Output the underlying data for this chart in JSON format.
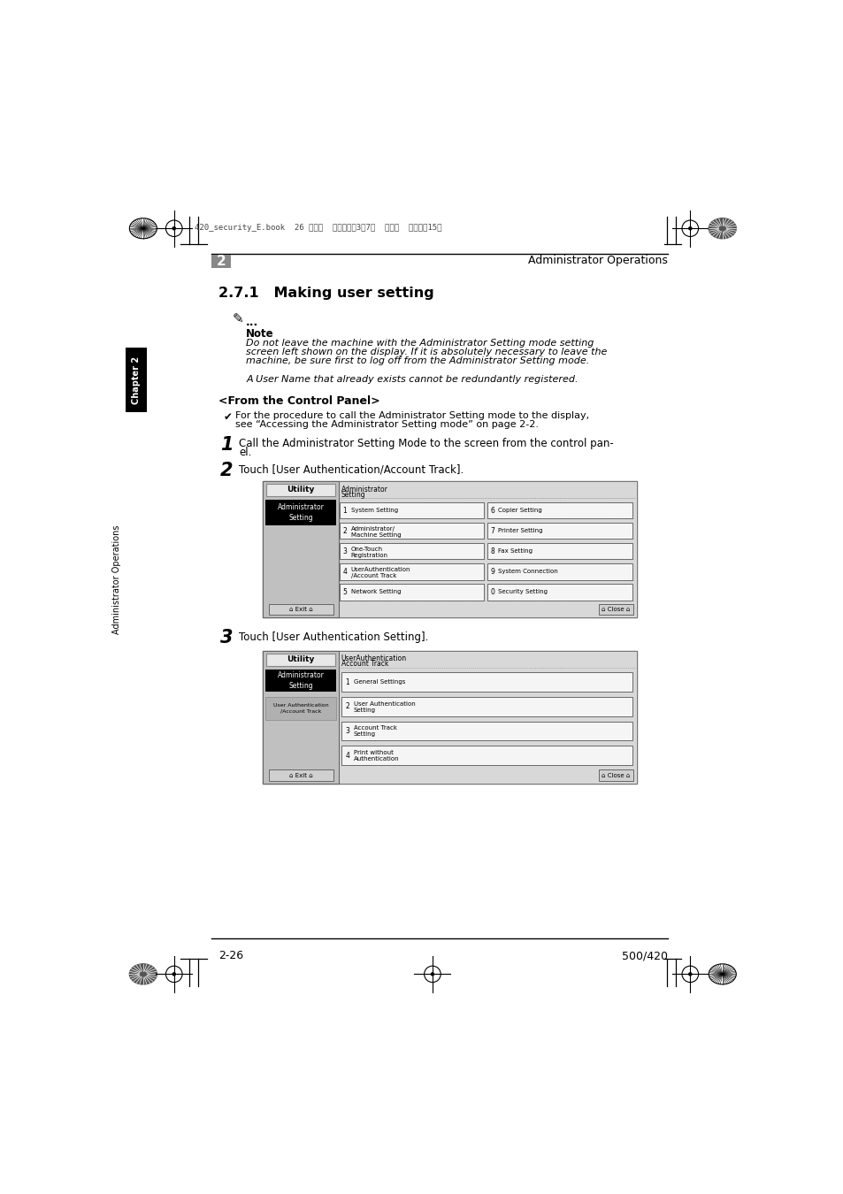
{
  "page_bg": "#ffffff",
  "chapter_tab_text": "Chapter 2",
  "side_tab_text": "Administrator Operations",
  "header_right_text": "Administrator Operations",
  "header_number": "2",
  "section_title": "2.7.1   Making user setting",
  "note_label": "Note",
  "note_line1": "Do not leave the machine with the Administrator Setting mode setting",
  "note_line2": "screen left shown on the display. If it is absolutely necessary to leave the",
  "note_line3": "machine, be sure first to log off from the Administrator Setting mode.",
  "note_line4": "A User Name that already exists cannot be redundantly registered.",
  "from_control_panel": "<From the Control Panel>",
  "check_line1": "For the procedure to call the Administrator Setting mode to the display,",
  "check_line2": "see “Accessing the Administrator Setting mode” on page 2-2.",
  "step1_text1": "Call the Administrator Setting Mode to the screen from the control pan-",
  "step1_text2": "el.",
  "step2_text": "Touch [User Authentication/Account Track].",
  "step3_text": "Touch [User Authentication Setting].",
  "footer_left": "2-26",
  "footer_right": "500/420",
  "header_meta": "420_security_E.book  26 ページ  ２００７年3月7日  水曜日  午後３時15分",
  "screen1_menu_left_nums": [
    "1",
    "2",
    "3",
    "4",
    "5"
  ],
  "screen1_menu_left": [
    "System Setting",
    "Administrator/\nMachine Setting",
    "One-Touch\nRegistration",
    "UserAuthentication\n/Account Track",
    "Network Setting"
  ],
  "screen1_menu_right_nums": [
    "6",
    "7",
    "8",
    "9",
    "0"
  ],
  "screen1_menu_right": [
    "Copier Setting",
    "Printer Setting",
    "Fax Setting",
    "System Connection",
    "Security Setting"
  ],
  "screen2_menu_nums": [
    "1",
    "2",
    "3",
    "4"
  ],
  "screen2_menu": [
    "General Settings",
    "User Authentication\nSetting",
    "Account Track\nSetting",
    "Print without\nAuthentication"
  ]
}
